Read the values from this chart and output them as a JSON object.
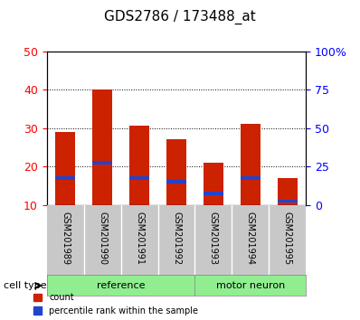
{
  "title": "GDS2786 / 173488_at",
  "samples": [
    "GSM201989",
    "GSM201990",
    "GSM201991",
    "GSM201992",
    "GSM201993",
    "GSM201994",
    "GSM201995"
  ],
  "red_values": [
    29.0,
    40.0,
    30.5,
    27.0,
    21.0,
    31.0,
    17.0
  ],
  "blue_values": [
    17.0,
    21.0,
    17.0,
    16.0,
    13.0,
    17.0,
    11.0
  ],
  "bar_bottom": 10,
  "ylim": [
    10,
    50
  ],
  "yticks": [
    10,
    20,
    30,
    40,
    50
  ],
  "right_yticks": [
    0,
    25,
    50,
    75,
    100
  ],
  "right_ytick_labels": [
    "0",
    "25",
    "50",
    "75",
    "100%"
  ],
  "bar_color": "#cc2200",
  "blue_color": "#2244cc",
  "gray_bg": "#c8c8c8",
  "ref_group_color": "#90ee90",
  "motor_group_color": "#90ee90",
  "plot_bg": "white",
  "legend_count_label": "count",
  "legend_pct_label": "percentile rank within the sample",
  "cell_type_label": "cell type",
  "ref_label": "reference",
  "motor_label": "motor neuron"
}
